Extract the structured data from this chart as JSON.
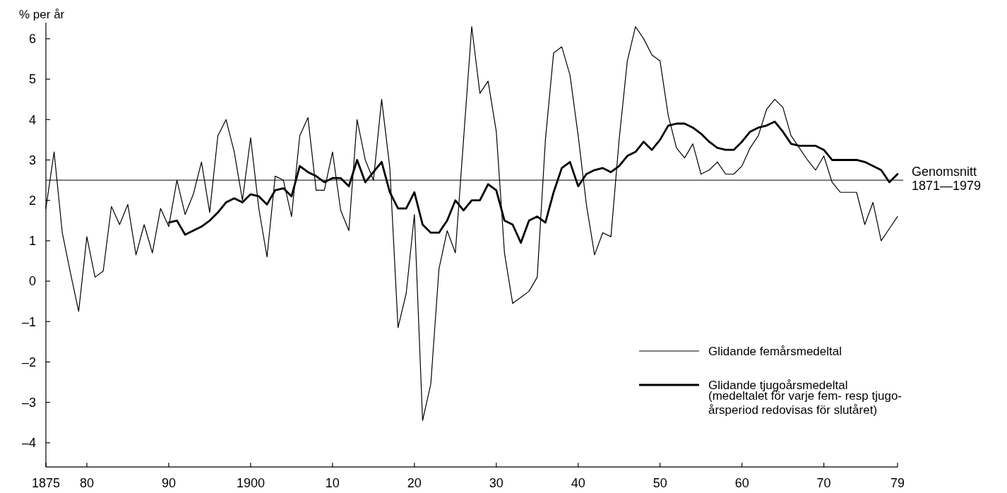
{
  "chart_data": {
    "type": "line",
    "ylabel": "% per år",
    "x": [
      1875,
      1876,
      1877,
      1878,
      1879,
      1880,
      1881,
      1882,
      1883,
      1884,
      1885,
      1886,
      1887,
      1888,
      1889,
      1890,
      1891,
      1892,
      1893,
      1894,
      1895,
      1896,
      1897,
      1898,
      1899,
      1900,
      1901,
      1902,
      1903,
      1904,
      1905,
      1906,
      1907,
      1908,
      1909,
      1910,
      1911,
      1912,
      1913,
      1914,
      1915,
      1916,
      1917,
      1918,
      1919,
      1920,
      1921,
      1922,
      1923,
      1924,
      1925,
      1926,
      1927,
      1928,
      1929,
      1930,
      1931,
      1932,
      1933,
      1934,
      1935,
      1936,
      1937,
      1938,
      1939,
      1940,
      1941,
      1942,
      1943,
      1944,
      1945,
      1946,
      1947,
      1948,
      1949,
      1950,
      1951,
      1952,
      1953,
      1954,
      1955,
      1956,
      1957,
      1958,
      1959,
      1960,
      1961,
      1962,
      1963,
      1964,
      1965,
      1966,
      1967,
      1968,
      1969,
      1970,
      1971,
      1972,
      1973,
      1974,
      1975,
      1976,
      1977,
      1978,
      1979
    ],
    "series": [
      {
        "name": "Glidande femårsmedeltal",
        "color": "#000000",
        "values": [
          1.8,
          3.2,
          1.2,
          0.2,
          -0.75,
          1.1,
          0.1,
          0.25,
          1.85,
          1.4,
          1.9,
          0.65,
          1.4,
          0.7,
          1.8,
          1.35,
          2.5,
          1.65,
          2.15,
          2.95,
          1.7,
          3.6,
          4.0,
          3.2,
          2.0,
          3.55,
          1.8,
          0.6,
          2.6,
          2.5,
          1.6,
          3.6,
          4.05,
          2.25,
          2.25,
          3.2,
          1.75,
          1.25,
          4.0,
          3.0,
          2.5,
          4.5,
          2.8,
          -1.15,
          -0.3,
          1.65,
          -3.45,
          -2.55,
          0.3,
          1.25,
          0.7,
          3.5,
          6.3,
          4.65,
          4.95,
          3.7,
          0.7,
          -0.55,
          -0.4,
          -0.25,
          0.1,
          3.5,
          5.65,
          5.8,
          5.1,
          3.6,
          1.9,
          0.65,
          1.2,
          1.1,
          3.5,
          5.45,
          6.3,
          6.0,
          5.6,
          5.45,
          4.1,
          3.3,
          3.05,
          3.4,
          2.65,
          2.75,
          2.95,
          2.65,
          2.65,
          2.85,
          3.3,
          3.6,
          4.25,
          4.5,
          4.3,
          3.6,
          3.3,
          3.0,
          2.75,
          3.1,
          2.45,
          2.2,
          2.2,
          2.2,
          1.4,
          1.95,
          1.0,
          1.3,
          1.6
        ]
      },
      {
        "name": "Glidande tjugoårsmedeltal",
        "color": "#000000",
        "values": [
          null,
          null,
          null,
          null,
          null,
          null,
          null,
          null,
          null,
          null,
          null,
          null,
          null,
          null,
          null,
          1.45,
          1.5,
          1.15,
          1.25,
          1.35,
          1.5,
          1.7,
          1.95,
          2.05,
          1.95,
          2.15,
          2.1,
          1.9,
          2.25,
          2.3,
          2.1,
          2.85,
          2.7,
          2.6,
          2.45,
          2.55,
          2.55,
          2.35,
          3.0,
          2.45,
          2.7,
          2.95,
          2.2,
          1.8,
          1.8,
          2.2,
          1.4,
          1.2,
          1.2,
          1.5,
          2.0,
          1.75,
          2.0,
          2.0,
          2.4,
          2.25,
          1.5,
          1.4,
          0.95,
          1.5,
          1.6,
          1.45,
          2.2,
          2.8,
          2.95,
          2.35,
          2.65,
          2.75,
          2.8,
          2.7,
          2.85,
          3.1,
          3.2,
          3.45,
          3.25,
          3.5,
          3.85,
          3.9,
          3.9,
          3.8,
          3.65,
          3.45,
          3.3,
          3.25,
          3.25,
          3.45,
          3.7,
          3.8,
          3.85,
          3.95,
          3.7,
          3.4,
          3.35,
          3.35,
          3.35,
          3.25,
          3.0,
          3.0,
          3.0,
          3.0,
          2.95,
          2.85,
          2.75,
          2.45,
          2.65
        ]
      }
    ],
    "xlim": [
      1875,
      1979
    ],
    "xticks": [
      1875,
      {
        "value": 1880,
        "label": "80"
      },
      {
        "value": 1890,
        "label": "90"
      },
      1900,
      {
        "value": 1910,
        "label": "10"
      },
      {
        "value": 1920,
        "label": "20"
      },
      {
        "value": 1930,
        "label": "30"
      },
      {
        "value": 1940,
        "label": "40"
      },
      {
        "value": 1950,
        "label": "50"
      },
      {
        "value": 1960,
        "label": "60"
      },
      {
        "value": 1970,
        "label": "70"
      },
      {
        "value": 1979,
        "label": "79"
      }
    ],
    "ylim": [
      -4.6,
      6.4
    ],
    "yticks": [
      {
        "value": -4,
        "label": "–4"
      },
      {
        "value": -3,
        "label": "–3"
      },
      {
        "value": -2,
        "label": "–2"
      },
      {
        "value": -1,
        "label": "–1"
      },
      0,
      1,
      2,
      3,
      4,
      5,
      6
    ],
    "ref_lines": [
      {
        "axis": "y",
        "value": 2.5,
        "label": "Genomsnitt 1871—1979",
        "color": "#000000"
      }
    ],
    "annotations": [
      "(medeltalet för varje fem- resp tjugo- årsperiod redovisas för slutåret)"
    ],
    "legend": "bottom right",
    "grid": false,
    "marker": "none",
    "line_style": "solid"
  }
}
